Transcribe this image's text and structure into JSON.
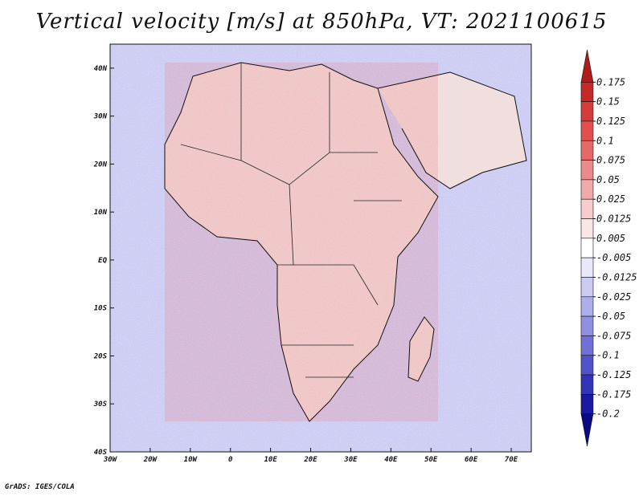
{
  "chart_data": {
    "type": "heatmap",
    "title": "Vertical velocity [m/s] at 850hPa, VT: 2021100615",
    "variable": "Vertical velocity",
    "units": "m/s",
    "level": "850hPa",
    "valid_time": "2021100615",
    "x_range": [
      -30,
      75
    ],
    "y_range": [
      -40,
      45
    ],
    "x_ticks": [
      {
        "value": -30,
        "label": "30W"
      },
      {
        "value": -20,
        "label": "20W"
      },
      {
        "value": -10,
        "label": "10W"
      },
      {
        "value": 0,
        "label": "0"
      },
      {
        "value": 10,
        "label": "10E"
      },
      {
        "value": 20,
        "label": "20E"
      },
      {
        "value": 30,
        "label": "30E"
      },
      {
        "value": 40,
        "label": "40E"
      },
      {
        "value": 50,
        "label": "50E"
      },
      {
        "value": 60,
        "label": "60E"
      },
      {
        "value": 70,
        "label": "70E"
      }
    ],
    "y_ticks": [
      {
        "value": 40,
        "label": "40N"
      },
      {
        "value": 30,
        "label": "30N"
      },
      {
        "value": 20,
        "label": "20N"
      },
      {
        "value": 10,
        "label": "10N"
      },
      {
        "value": 0,
        "label": "EQ"
      },
      {
        "value": -10,
        "label": "10S"
      },
      {
        "value": -20,
        "label": "20S"
      },
      {
        "value": -30,
        "label": "30S"
      },
      {
        "value": -40,
        "label": "40S"
      }
    ],
    "colorbar": {
      "levels": [
        "0.175",
        "0.15",
        "0.125",
        "0.1",
        "0.075",
        "0.05",
        "0.025",
        "0.0125",
        "0.005",
        "-0.005",
        "-0.0125",
        "-0.025",
        "-0.05",
        "-0.075",
        "-0.1",
        "-0.125",
        "-0.175",
        "-0.2"
      ],
      "colors": [
        "#b01c1c",
        "#c42a2a",
        "#d43c3c",
        "#e05050",
        "#e46a6a",
        "#ea8a8a",
        "#f0aaaa",
        "#f6cccc",
        "#fae6e6",
        "#ffffff",
        "#e8e8fa",
        "#ccccf2",
        "#aeaeea",
        "#9090e0",
        "#7070d6",
        "#5252c8",
        "#3434b6",
        "#1818a0",
        "#0a0a84"
      ]
    }
  },
  "footer": {
    "credit": "GrADS: IGES/COLA"
  }
}
